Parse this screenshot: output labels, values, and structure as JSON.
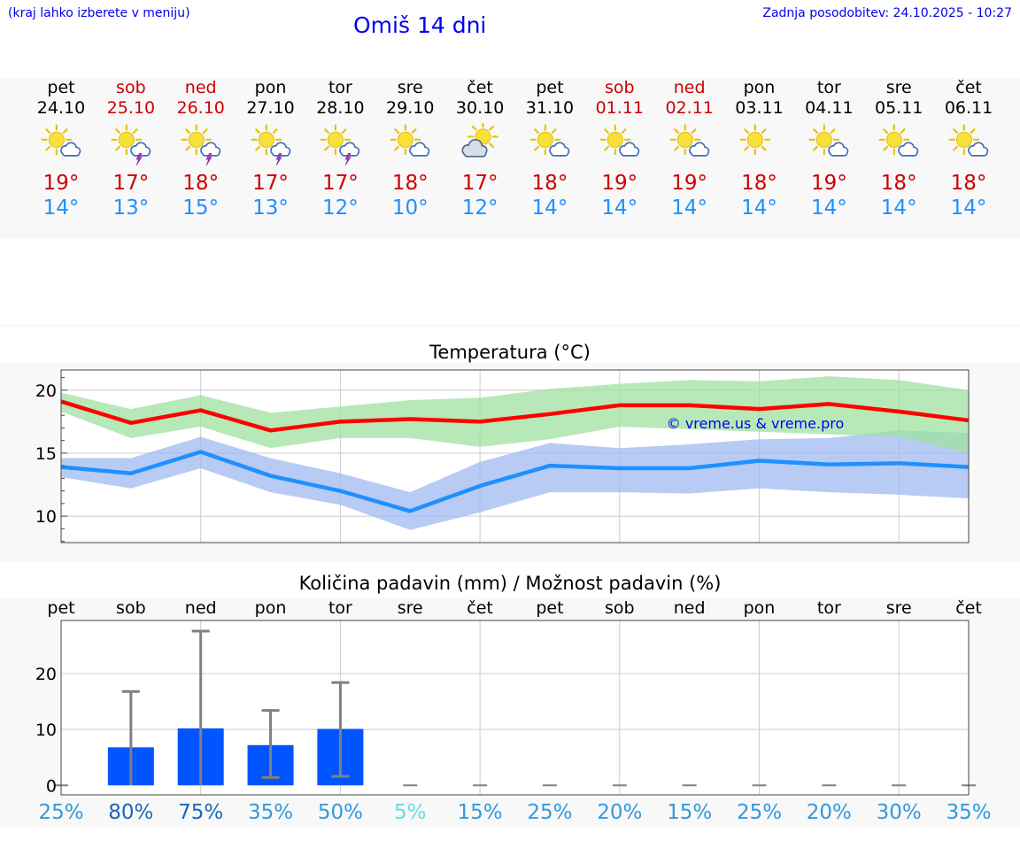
{
  "header": {
    "hint": "(kraj lahko izberete v meniju)",
    "title": "Omiš 14 dni",
    "updated": "Zadnja posodobitev: 24.10.2025 - 10:27"
  },
  "days": [
    {
      "name": "pet",
      "date": "24.10",
      "weekend": false,
      "icon": "sun-cloud-icon",
      "max": "19°",
      "min": "14°"
    },
    {
      "name": "sob",
      "date": "25.10",
      "weekend": true,
      "icon": "sun-cloud-thunder-icon",
      "max": "17°",
      "min": "13°"
    },
    {
      "name": "ned",
      "date": "26.10",
      "weekend": true,
      "icon": "sun-cloud-thunder-icon",
      "max": "18°",
      "min": "15°"
    },
    {
      "name": "pon",
      "date": "27.10",
      "weekend": false,
      "icon": "sun-cloud-thunder-icon",
      "max": "17°",
      "min": "13°"
    },
    {
      "name": "tor",
      "date": "28.10",
      "weekend": false,
      "icon": "sun-cloud-thunder-icon",
      "max": "17°",
      "min": "12°"
    },
    {
      "name": "sre",
      "date": "29.10",
      "weekend": false,
      "icon": "sun-cloud-icon",
      "max": "18°",
      "min": "10°"
    },
    {
      "name": "čet",
      "date": "30.10",
      "weekend": false,
      "icon": "cloud-sun-icon",
      "max": "17°",
      "min": "12°"
    },
    {
      "name": "pet",
      "date": "31.10",
      "weekend": false,
      "icon": "sun-cloud-icon",
      "max": "18°",
      "min": "14°"
    },
    {
      "name": "sob",
      "date": "01.11",
      "weekend": true,
      "icon": "sun-cloud-icon",
      "max": "19°",
      "min": "14°"
    },
    {
      "name": "ned",
      "date": "02.11",
      "weekend": true,
      "icon": "sun-cloud-icon",
      "max": "19°",
      "min": "14°"
    },
    {
      "name": "pon",
      "date": "03.11",
      "weekend": false,
      "icon": "sun-icon",
      "max": "18°",
      "min": "14°"
    },
    {
      "name": "tor",
      "date": "04.11",
      "weekend": false,
      "icon": "sun-cloud-icon",
      "max": "19°",
      "min": "14°"
    },
    {
      "name": "sre",
      "date": "05.11",
      "weekend": false,
      "icon": "sun-cloud-icon",
      "max": "18°",
      "min": "14°"
    },
    {
      "name": "čet",
      "date": "06.11",
      "weekend": false,
      "icon": "sun-cloud-icon",
      "max": "18°",
      "min": "14°"
    }
  ],
  "colors": {
    "max": "#ff0000",
    "max_band": "#9fe0a0",
    "min": "#1e90ff",
    "min_band": "#9fbaf0",
    "bar": "#0055ff",
    "err": "#808080"
  },
  "chart_data": [
    {
      "type": "line",
      "title": "Temperatura (°C)",
      "watermark": "© vreme.us & vreme.pro",
      "yticks": [
        "10",
        "15",
        "20"
      ],
      "ylim": [
        7.9,
        21.6
      ],
      "x": [
        0,
        1,
        2,
        3,
        4,
        5,
        6,
        7,
        8,
        9,
        10,
        11,
        12,
        13
      ],
      "series": [
        {
          "name": "max",
          "values": [
            19.1,
            17.4,
            18.4,
            16.8,
            17.5,
            17.7,
            17.5,
            18.1,
            18.8,
            18.8,
            18.5,
            18.9,
            18.3,
            17.6
          ],
          "band_low": [
            18.3,
            16.2,
            17.1,
            15.4,
            16.2,
            16.2,
            15.5,
            16.1,
            17.1,
            16.9,
            16.7,
            16.5,
            16.3,
            15.0
          ],
          "band_high": [
            19.8,
            18.5,
            19.6,
            18.2,
            18.7,
            19.2,
            19.4,
            20.1,
            20.5,
            20.8,
            20.7,
            21.1,
            20.8,
            20.0
          ]
        },
        {
          "name": "min",
          "values": [
            13.9,
            13.4,
            15.1,
            13.2,
            12.0,
            10.4,
            12.4,
            14.0,
            13.8,
            13.8,
            14.4,
            14.1,
            14.2,
            13.9
          ],
          "band_low": [
            13.1,
            12.2,
            13.8,
            11.9,
            10.9,
            8.9,
            10.3,
            11.9,
            11.9,
            11.8,
            12.2,
            11.9,
            11.7,
            11.4
          ],
          "band_high": [
            14.6,
            14.6,
            16.3,
            14.6,
            13.4,
            11.9,
            14.3,
            15.8,
            15.4,
            15.7,
            16.1,
            16.2,
            16.8,
            16.6
          ]
        }
      ]
    },
    {
      "type": "bar",
      "title": "Količina padavin (mm) / Možnost padavin (%)",
      "categories": [
        "pet",
        "sob",
        "ned",
        "pon",
        "tor",
        "sre",
        "čet",
        "pet",
        "sob",
        "ned",
        "pon",
        "tor",
        "sre",
        "čet"
      ],
      "yticks": [
        "0",
        "10",
        "20"
      ],
      "ylim": [
        -1.7,
        29.5
      ],
      "values": [
        0,
        6.8,
        10.2,
        7.2,
        10.1,
        0,
        0,
        0,
        0,
        0,
        0,
        0,
        0,
        0
      ],
      "err_low": [
        0,
        0,
        0,
        1.4,
        1.6,
        0,
        0,
        0,
        0,
        0,
        0,
        0,
        0,
        0
      ],
      "err_high": [
        0,
        16.8,
        27.6,
        13.4,
        18.4,
        0,
        0,
        0,
        0,
        0,
        0,
        0,
        0,
        0
      ],
      "probability": [
        "25%",
        "80%",
        "75%",
        "35%",
        "50%",
        "5%",
        "15%",
        "25%",
        "20%",
        "15%",
        "25%",
        "20%",
        "30%",
        "35%"
      ],
      "probability_colors": [
        "#3399dd",
        "#1a66bb",
        "#1a66bb",
        "#3399dd",
        "#3399dd",
        "#66dddd",
        "#3399dd",
        "#3399dd",
        "#3399dd",
        "#3399dd",
        "#3399dd",
        "#3399dd",
        "#3399dd",
        "#3399dd"
      ]
    }
  ]
}
